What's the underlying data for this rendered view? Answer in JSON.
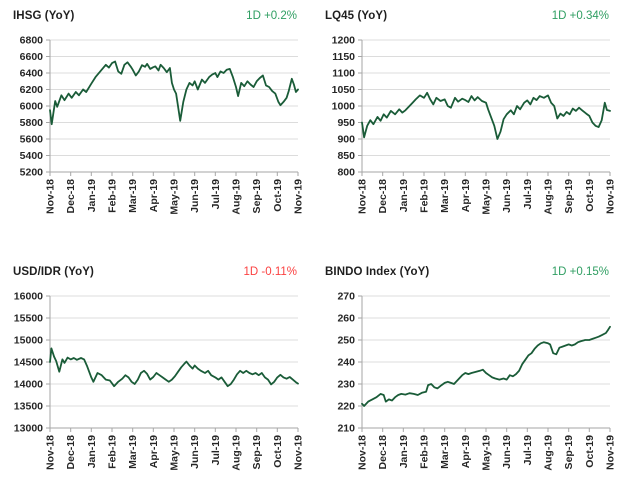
{
  "page": {
    "background": "#ffffff"
  },
  "chart_data": [
    {
      "id": "ihsg",
      "type": "line",
      "title": "IHSG (YoY)",
      "change": "1D +0.2%",
      "change_color": "#2f9e62",
      "line_color": "#1a5c38",
      "y_min": 5200,
      "y_max": 6800,
      "y_step": 200,
      "x_labels": [
        "Nov-18",
        "Dec-18",
        "Jan-19",
        "Feb-19",
        "Mar-19",
        "Apr-19",
        "May-19",
        "Jun-19",
        "Jul-19",
        "Aug-19",
        "Sep-19",
        "Oct-19",
        "Nov-19"
      ],
      "x_unit": "months since Nov-18",
      "grid": true,
      "points": [
        [
          0,
          5950
        ],
        [
          0.08,
          5780
        ],
        [
          0.25,
          6060
        ],
        [
          0.35,
          5990
        ],
        [
          0.55,
          6130
        ],
        [
          0.7,
          6070
        ],
        [
          0.9,
          6150
        ],
        [
          1.05,
          6100
        ],
        [
          1.25,
          6170
        ],
        [
          1.4,
          6130
        ],
        [
          1.6,
          6200
        ],
        [
          1.75,
          6170
        ],
        [
          2,
          6270
        ],
        [
          2.2,
          6350
        ],
        [
          2.5,
          6440
        ],
        [
          2.7,
          6500
        ],
        [
          2.85,
          6465
        ],
        [
          3,
          6520
        ],
        [
          3.15,
          6540
        ],
        [
          3.3,
          6420
        ],
        [
          3.45,
          6390
        ],
        [
          3.6,
          6500
        ],
        [
          3.75,
          6530
        ],
        [
          3.9,
          6480
        ],
        [
          4,
          6440
        ],
        [
          4.15,
          6370
        ],
        [
          4.3,
          6420
        ],
        [
          4.45,
          6495
        ],
        [
          4.6,
          6475
        ],
        [
          4.7,
          6510
        ],
        [
          4.85,
          6450
        ],
        [
          5,
          6470
        ],
        [
          5.1,
          6480
        ],
        [
          5.25,
          6430
        ],
        [
          5.35,
          6500
        ],
        [
          5.5,
          6460
        ],
        [
          5.65,
          6410
        ],
        [
          5.8,
          6460
        ],
        [
          5.9,
          6280
        ],
        [
          6,
          6200
        ],
        [
          6.1,
          6150
        ],
        [
          6.2,
          5990
        ],
        [
          6.3,
          5820
        ],
        [
          6.45,
          6050
        ],
        [
          6.6,
          6200
        ],
        [
          6.75,
          6280
        ],
        [
          6.9,
          6250
        ],
        [
          7,
          6300
        ],
        [
          7.15,
          6200
        ],
        [
          7.35,
          6320
        ],
        [
          7.5,
          6280
        ],
        [
          7.7,
          6350
        ],
        [
          7.85,
          6380
        ],
        [
          8,
          6400
        ],
        [
          8.1,
          6350
        ],
        [
          8.25,
          6420
        ],
        [
          8.4,
          6400
        ],
        [
          8.55,
          6440
        ],
        [
          8.7,
          6450
        ],
        [
          8.85,
          6350
        ],
        [
          9,
          6230
        ],
        [
          9.1,
          6120
        ],
        [
          9.25,
          6280
        ],
        [
          9.4,
          6240
        ],
        [
          9.55,
          6300
        ],
        [
          9.7,
          6260
        ],
        [
          9.85,
          6230
        ],
        [
          10,
          6300
        ],
        [
          10.15,
          6340
        ],
        [
          10.3,
          6370
        ],
        [
          10.45,
          6250
        ],
        [
          10.6,
          6230
        ],
        [
          10.75,
          6180
        ],
        [
          10.9,
          6150
        ],
        [
          11.05,
          6050
        ],
        [
          11.15,
          6010
        ],
        [
          11.3,
          6050
        ],
        [
          11.45,
          6100
        ],
        [
          11.55,
          6180
        ],
        [
          11.7,
          6330
        ],
        [
          11.8,
          6260
        ],
        [
          11.9,
          6170
        ],
        [
          12,
          6200
        ]
      ]
    },
    {
      "id": "lq45",
      "type": "line",
      "title": "LQ45 (YoY)",
      "change": "1D +0.34%",
      "change_color": "#2f9e62",
      "line_color": "#1a5c38",
      "y_min": 800,
      "y_max": 1200,
      "y_step": 50,
      "x_labels": [
        "Nov-18",
        "Dec-18",
        "Jan-19",
        "Feb-19",
        "Mar-19",
        "Apr-19",
        "May-19",
        "Jun-19",
        "Jul-19",
        "Aug-19",
        "Sep-19",
        "Oct-19",
        "Nov-19"
      ],
      "x_unit": "months since Nov-18",
      "grid": true,
      "points": [
        [
          0,
          950
        ],
        [
          0.1,
          905
        ],
        [
          0.25,
          940
        ],
        [
          0.4,
          957
        ],
        [
          0.55,
          945
        ],
        [
          0.75,
          967
        ],
        [
          0.9,
          955
        ],
        [
          1.05,
          975
        ],
        [
          1.2,
          965
        ],
        [
          1.4,
          985
        ],
        [
          1.6,
          975
        ],
        [
          1.8,
          990
        ],
        [
          1.95,
          980
        ],
        [
          2.1,
          987
        ],
        [
          2.3,
          1000
        ],
        [
          2.45,
          1010
        ],
        [
          2.6,
          1020
        ],
        [
          2.8,
          1032
        ],
        [
          3,
          1025
        ],
        [
          3.15,
          1040
        ],
        [
          3.3,
          1020
        ],
        [
          3.45,
          1005
        ],
        [
          3.6,
          1025
        ],
        [
          3.8,
          1015
        ],
        [
          4,
          1020
        ],
        [
          4.15,
          1000
        ],
        [
          4.3,
          995
        ],
        [
          4.5,
          1025
        ],
        [
          4.65,
          1013
        ],
        [
          4.85,
          1022
        ],
        [
          5,
          1018
        ],
        [
          5.15,
          1012
        ],
        [
          5.3,
          1030
        ],
        [
          5.45,
          1017
        ],
        [
          5.6,
          1027
        ],
        [
          5.8,
          1015
        ],
        [
          6,
          1010
        ],
        [
          6.1,
          990
        ],
        [
          6.25,
          965
        ],
        [
          6.4,
          940
        ],
        [
          6.55,
          900
        ],
        [
          6.7,
          922
        ],
        [
          6.85,
          960
        ],
        [
          7,
          975
        ],
        [
          7.2,
          987
        ],
        [
          7.35,
          975
        ],
        [
          7.5,
          1000
        ],
        [
          7.65,
          990
        ],
        [
          7.85,
          1010
        ],
        [
          8,
          1017
        ],
        [
          8.15,
          1005
        ],
        [
          8.3,
          1025
        ],
        [
          8.45,
          1018
        ],
        [
          8.6,
          1030
        ],
        [
          8.8,
          1025
        ],
        [
          9,
          1032
        ],
        [
          9.15,
          1010
        ],
        [
          9.3,
          1000
        ],
        [
          9.45,
          962
        ],
        [
          9.6,
          977
        ],
        [
          9.75,
          970
        ],
        [
          9.9,
          982
        ],
        [
          10.05,
          975
        ],
        [
          10.2,
          992
        ],
        [
          10.35,
          985
        ],
        [
          10.5,
          995
        ],
        [
          10.65,
          987
        ],
        [
          10.85,
          977
        ],
        [
          11,
          970
        ],
        [
          11.15,
          950
        ],
        [
          11.3,
          940
        ],
        [
          11.45,
          936
        ],
        [
          11.6,
          957
        ],
        [
          11.75,
          1010
        ],
        [
          11.85,
          988
        ],
        [
          12,
          985
        ]
      ]
    },
    {
      "id": "usdidr",
      "type": "line",
      "title": "USD/IDR (YoY)",
      "change": "1D -0.11%",
      "change_color": "#fb4141",
      "line_color": "#1a5c38",
      "y_min": 13000,
      "y_max": 16000,
      "y_step": 500,
      "x_labels": [
        "Nov-18",
        "Dec-18",
        "Jan-19",
        "Feb-19",
        "Mar-19",
        "Apr-19",
        "May-19",
        "Jun-19",
        "Jul-19",
        "Aug-19",
        "Sep-19",
        "Oct-19",
        "Nov-19"
      ],
      "x_unit": "months since Nov-18",
      "grid": true,
      "points": [
        [
          0,
          14500
        ],
        [
          0.07,
          14810
        ],
        [
          0.2,
          14620
        ],
        [
          0.3,
          14520
        ],
        [
          0.45,
          14280
        ],
        [
          0.6,
          14560
        ],
        [
          0.7,
          14480
        ],
        [
          0.85,
          14600
        ],
        [
          1,
          14560
        ],
        [
          1.15,
          14590
        ],
        [
          1.3,
          14550
        ],
        [
          1.5,
          14590
        ],
        [
          1.65,
          14560
        ],
        [
          1.8,
          14400
        ],
        [
          2,
          14150
        ],
        [
          2.1,
          14050
        ],
        [
          2.3,
          14250
        ],
        [
          2.5,
          14200
        ],
        [
          2.7,
          14100
        ],
        [
          2.9,
          14080
        ],
        [
          3.1,
          13950
        ],
        [
          3.3,
          14050
        ],
        [
          3.5,
          14120
        ],
        [
          3.65,
          14200
        ],
        [
          3.8,
          14150
        ],
        [
          3.95,
          14050
        ],
        [
          4.1,
          14000
        ],
        [
          4.25,
          14100
        ],
        [
          4.4,
          14250
        ],
        [
          4.55,
          14300
        ],
        [
          4.7,
          14230
        ],
        [
          4.85,
          14100
        ],
        [
          5,
          14160
        ],
        [
          5.15,
          14250
        ],
        [
          5.3,
          14200
        ],
        [
          5.45,
          14150
        ],
        [
          5.6,
          14100
        ],
        [
          5.75,
          14050
        ],
        [
          5.9,
          14100
        ],
        [
          6.05,
          14180
        ],
        [
          6.2,
          14280
        ],
        [
          6.35,
          14380
        ],
        [
          6.5,
          14460
        ],
        [
          6.6,
          14510
        ],
        [
          6.75,
          14420
        ],
        [
          6.9,
          14350
        ],
        [
          7,
          14420
        ],
        [
          7.15,
          14350
        ],
        [
          7.3,
          14300
        ],
        [
          7.5,
          14250
        ],
        [
          7.65,
          14300
        ],
        [
          7.8,
          14200
        ],
        [
          8,
          14150
        ],
        [
          8.15,
          14100
        ],
        [
          8.3,
          14150
        ],
        [
          8.45,
          14050
        ],
        [
          8.6,
          13950
        ],
        [
          8.75,
          14000
        ],
        [
          8.9,
          14100
        ],
        [
          9.05,
          14220
        ],
        [
          9.2,
          14300
        ],
        [
          9.35,
          14250
        ],
        [
          9.5,
          14300
        ],
        [
          9.65,
          14250
        ],
        [
          9.8,
          14220
        ],
        [
          9.95,
          14250
        ],
        [
          10.1,
          14200
        ],
        [
          10.25,
          14250
        ],
        [
          10.4,
          14150
        ],
        [
          10.55,
          14100
        ],
        [
          10.7,
          13990
        ],
        [
          10.85,
          14050
        ],
        [
          11,
          14150
        ],
        [
          11.15,
          14210
        ],
        [
          11.3,
          14150
        ],
        [
          11.45,
          14120
        ],
        [
          11.6,
          14160
        ],
        [
          11.75,
          14100
        ],
        [
          11.9,
          14040
        ],
        [
          12,
          14010
        ]
      ]
    },
    {
      "id": "bindo",
      "type": "line",
      "title": "BINDO Index (YoY)",
      "change": "1D +0.15%",
      "change_color": "#2f9e62",
      "line_color": "#1a5c38",
      "y_min": 210,
      "y_max": 270,
      "y_step": 10,
      "x_labels": [
        "Nov-18",
        "Dec-18",
        "Jan-19",
        "Feb-19",
        "Mar-19",
        "Apr-19",
        "May-19",
        "Jun-19",
        "Jul-19",
        "Aug-19",
        "Sep-19",
        "Oct-19",
        "Nov-19"
      ],
      "x_unit": "months since Nov-18",
      "grid": true,
      "points": [
        [
          0,
          221
        ],
        [
          0.1,
          220
        ],
        [
          0.3,
          222
        ],
        [
          0.5,
          223
        ],
        [
          0.7,
          224
        ],
        [
          0.9,
          225.5
        ],
        [
          1.05,
          225
        ],
        [
          1.15,
          222
        ],
        [
          1.3,
          223
        ],
        [
          1.45,
          222.5
        ],
        [
          1.6,
          224
        ],
        [
          1.75,
          225
        ],
        [
          1.9,
          225.5
        ],
        [
          2.1,
          225.2
        ],
        [
          2.3,
          225.8
        ],
        [
          2.5,
          225.5
        ],
        [
          2.7,
          225
        ],
        [
          2.9,
          226
        ],
        [
          3.1,
          226.5
        ],
        [
          3.2,
          229.5
        ],
        [
          3.35,
          230
        ],
        [
          3.5,
          228.5
        ],
        [
          3.65,
          228
        ],
        [
          3.85,
          229.5
        ],
        [
          4,
          230.5
        ],
        [
          4.15,
          231
        ],
        [
          4.3,
          230.5
        ],
        [
          4.45,
          230
        ],
        [
          4.65,
          232
        ],
        [
          4.85,
          234
        ],
        [
          5,
          235
        ],
        [
          5.15,
          234.5
        ],
        [
          5.3,
          235
        ],
        [
          5.5,
          235.5
        ],
        [
          5.7,
          236
        ],
        [
          5.85,
          236.5
        ],
        [
          6,
          235
        ],
        [
          6.15,
          234
        ],
        [
          6.3,
          233
        ],
        [
          6.45,
          232.5
        ],
        [
          6.65,
          232
        ],
        [
          6.85,
          232.5
        ],
        [
          7,
          232
        ],
        [
          7.15,
          234
        ],
        [
          7.3,
          233.5
        ],
        [
          7.45,
          234.5
        ],
        [
          7.6,
          236
        ],
        [
          7.75,
          239
        ],
        [
          7.9,
          241
        ],
        [
          8.05,
          243
        ],
        [
          8.2,
          244
        ],
        [
          8.35,
          246
        ],
        [
          8.5,
          247.5
        ],
        [
          8.65,
          248.5
        ],
        [
          8.8,
          249
        ],
        [
          9,
          248.5
        ],
        [
          9.1,
          248
        ],
        [
          9.25,
          244
        ],
        [
          9.4,
          243.5
        ],
        [
          9.55,
          246.5
        ],
        [
          9.7,
          247
        ],
        [
          9.85,
          247.5
        ],
        [
          10,
          248
        ],
        [
          10.15,
          247.5
        ],
        [
          10.3,
          248
        ],
        [
          10.45,
          249
        ],
        [
          10.6,
          249.5
        ],
        [
          10.8,
          250
        ],
        [
          11,
          250
        ],
        [
          11.15,
          250.5
        ],
        [
          11.3,
          251
        ],
        [
          11.45,
          251.5
        ],
        [
          11.6,
          252.2
        ],
        [
          11.8,
          253.2
        ],
        [
          11.9,
          254.5
        ],
        [
          12,
          256
        ]
      ]
    }
  ],
  "axis_style": {
    "grid_color": "#dcdcdc",
    "axis_color": "#a6a6a6",
    "tick_label_color": "#262626"
  }
}
